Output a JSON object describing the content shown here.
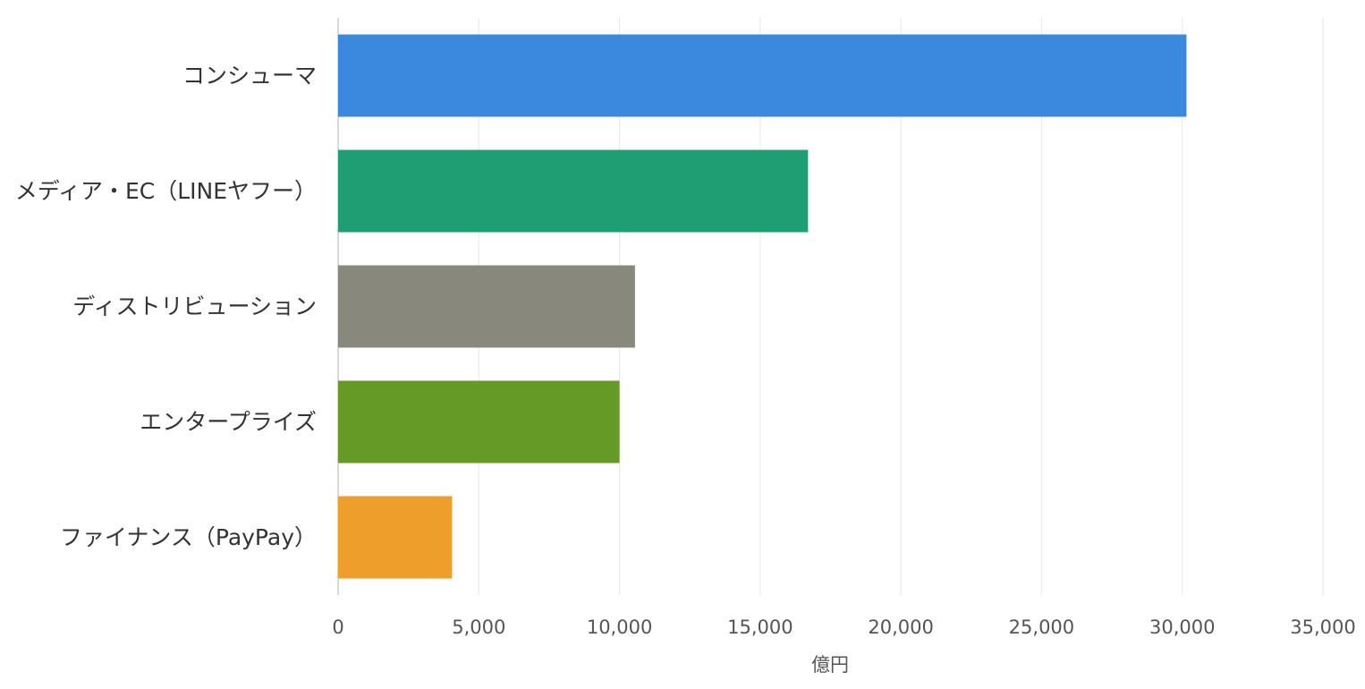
{
  "chart_data": {
    "type": "bar",
    "orientation": "horizontal",
    "categories": [
      "コンシューマ",
      "メディア・EC（LINEヤフー）",
      "ディストリビューション",
      "エンタープライズ",
      "ファイナンス（PayPay）"
    ],
    "values": [
      30150,
      16700,
      10550,
      10000,
      4050
    ],
    "colors": [
      "#3a89de",
      "#1f9e74",
      "#88887d",
      "#659a26",
      "#ee9e2b"
    ],
    "xlabel": "億円",
    "ylabel": "",
    "xlim": [
      0,
      35000
    ],
    "xticks": [
      0,
      5000,
      10000,
      15000,
      20000,
      25000,
      30000,
      35000
    ],
    "xtick_labels": [
      "0",
      "5,000",
      "10,000",
      "15,000",
      "20,000",
      "25,000",
      "30,000",
      "35,000"
    ],
    "grid": "vertical",
    "legend": "none"
  }
}
